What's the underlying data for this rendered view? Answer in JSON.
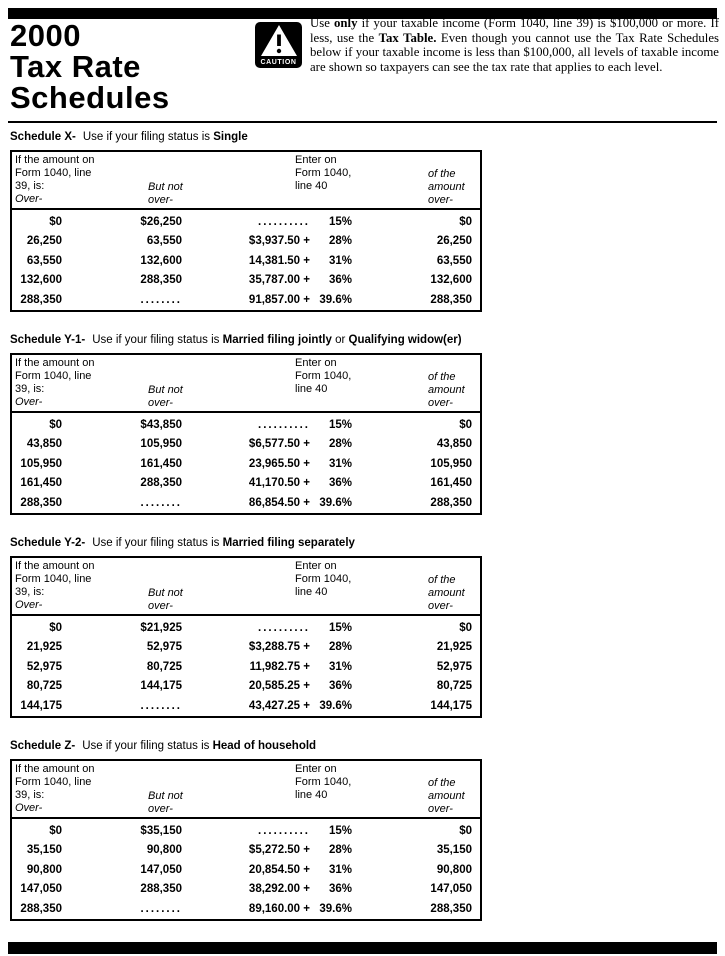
{
  "page": {
    "masthead_lines": [
      "2000",
      "Tax Rate",
      "Schedules"
    ],
    "caution_label": "CAUTION",
    "intro_runs": [
      {
        "text": "Use ",
        "bold": false
      },
      {
        "text": "only",
        "bold": true
      },
      {
        "text": " if your taxable income (Form 1040, line 39) is $100,000 or more. If less, use the ",
        "bold": false
      },
      {
        "text": "Tax Table.",
        "bold": true
      },
      {
        "text": " Even though you cannot use the Tax Rate Schedules below if your taxable income is less than $100,000, all levels of taxable income are shown so taxpayers can see the tax rate that applies to each level.",
        "bold": false
      }
    ]
  },
  "table_header": {
    "col1_lines": [
      "If the amount on",
      "Form 1040, line",
      "39, is:"
    ],
    "col1_italic": "Over-",
    "col2_italic_lines": [
      "But not",
      "over-"
    ],
    "col3_lines": [
      "Enter on",
      "Form 1040,",
      "line 40"
    ],
    "col4_italic_lines": [
      "of the",
      "amount",
      "over-"
    ]
  },
  "schedules": [
    {
      "label": "Schedule X-",
      "title_runs": [
        {
          "text": "Use if your filing status is ",
          "bold": false
        },
        {
          "text": "Single",
          "bold": true
        }
      ],
      "rows": [
        {
          "over": "$0",
          "but_not_over": "$26,250",
          "base": "..........",
          "rate": "15%",
          "of_amount_over": "$0"
        },
        {
          "over": "26,250",
          "but_not_over": "63,550",
          "base": "$3,937.50 +",
          "rate": "28%",
          "of_amount_over": "26,250"
        },
        {
          "over": "63,550",
          "but_not_over": "132,600",
          "base": "14,381.50 +",
          "rate": "31%",
          "of_amount_over": "63,550"
        },
        {
          "over": "132,600",
          "but_not_over": "288,350",
          "base": "35,787.00 +",
          "rate": "36%",
          "of_amount_over": "132,600"
        },
        {
          "over": "288,350",
          "but_not_over": "........",
          "base": "91,857.00 +",
          "rate": "39.6%",
          "of_amount_over": "288,350"
        }
      ]
    },
    {
      "label": "Schedule Y-1-",
      "title_runs": [
        {
          "text": "Use if your filing status is ",
          "bold": false
        },
        {
          "text": "Married filing jointly",
          "bold": true
        },
        {
          "text": " or ",
          "bold": false
        },
        {
          "text": "Qualifying widow(er)",
          "bold": true
        }
      ],
      "rows": [
        {
          "over": "$0",
          "but_not_over": "$43,850",
          "base": "..........",
          "rate": "15%",
          "of_amount_over": "$0"
        },
        {
          "over": "43,850",
          "but_not_over": "105,950",
          "base": "$6,577.50 +",
          "rate": "28%",
          "of_amount_over": "43,850"
        },
        {
          "over": "105,950",
          "but_not_over": "161,450",
          "base": "23,965.50 +",
          "rate": "31%",
          "of_amount_over": "105,950"
        },
        {
          "over": "161,450",
          "but_not_over": "288,350",
          "base": "41,170.50 +",
          "rate": "36%",
          "of_amount_over": "161,450"
        },
        {
          "over": "288,350",
          "but_not_over": "........",
          "base": "86,854.50 +",
          "rate": "39.6%",
          "of_amount_over": "288,350"
        }
      ]
    },
    {
      "label": "Schedule Y-2-",
      "title_runs": [
        {
          "text": "Use if your filing status is ",
          "bold": false
        },
        {
          "text": "Married filing separately",
          "bold": true
        }
      ],
      "rows": [
        {
          "over": "$0",
          "but_not_over": "$21,925",
          "base": "..........",
          "rate": "15%",
          "of_amount_over": "$0"
        },
        {
          "over": "21,925",
          "but_not_over": "52,975",
          "base": "$3,288.75 +",
          "rate": "28%",
          "of_amount_over": "21,925"
        },
        {
          "over": "52,975",
          "but_not_over": "80,725",
          "base": "11,982.75 +",
          "rate": "31%",
          "of_amount_over": "52,975"
        },
        {
          "over": "80,725",
          "but_not_over": "144,175",
          "base": "20,585.25 +",
          "rate": "36%",
          "of_amount_over": "80,725"
        },
        {
          "over": "144,175",
          "but_not_over": "........",
          "base": "43,427.25 +",
          "rate": "39.6%",
          "of_amount_over": "144,175"
        }
      ]
    },
    {
      "label": "Schedule Z-",
      "title_runs": [
        {
          "text": "Use if your filing status is ",
          "bold": false
        },
        {
          "text": "Head of household",
          "bold": true
        }
      ],
      "rows": [
        {
          "over": "$0",
          "but_not_over": "$35,150",
          "base": "..........",
          "rate": "15%",
          "of_amount_over": "$0"
        },
        {
          "over": "35,150",
          "but_not_over": "90,800",
          "base": "$5,272.50 +",
          "rate": "28%",
          "of_amount_over": "35,150"
        },
        {
          "over": "90,800",
          "but_not_over": "147,050",
          "base": "20,854.50 +",
          "rate": "31%",
          "of_amount_over": "90,800"
        },
        {
          "over": "147,050",
          "but_not_over": "288,350",
          "base": "38,292.00 +",
          "rate": "36%",
          "of_amount_over": "147,050"
        },
        {
          "over": "288,350",
          "but_not_over": "........",
          "base": "89,160.00 +",
          "rate": "39.6%",
          "of_amount_over": "288,350"
        }
      ]
    }
  ]
}
